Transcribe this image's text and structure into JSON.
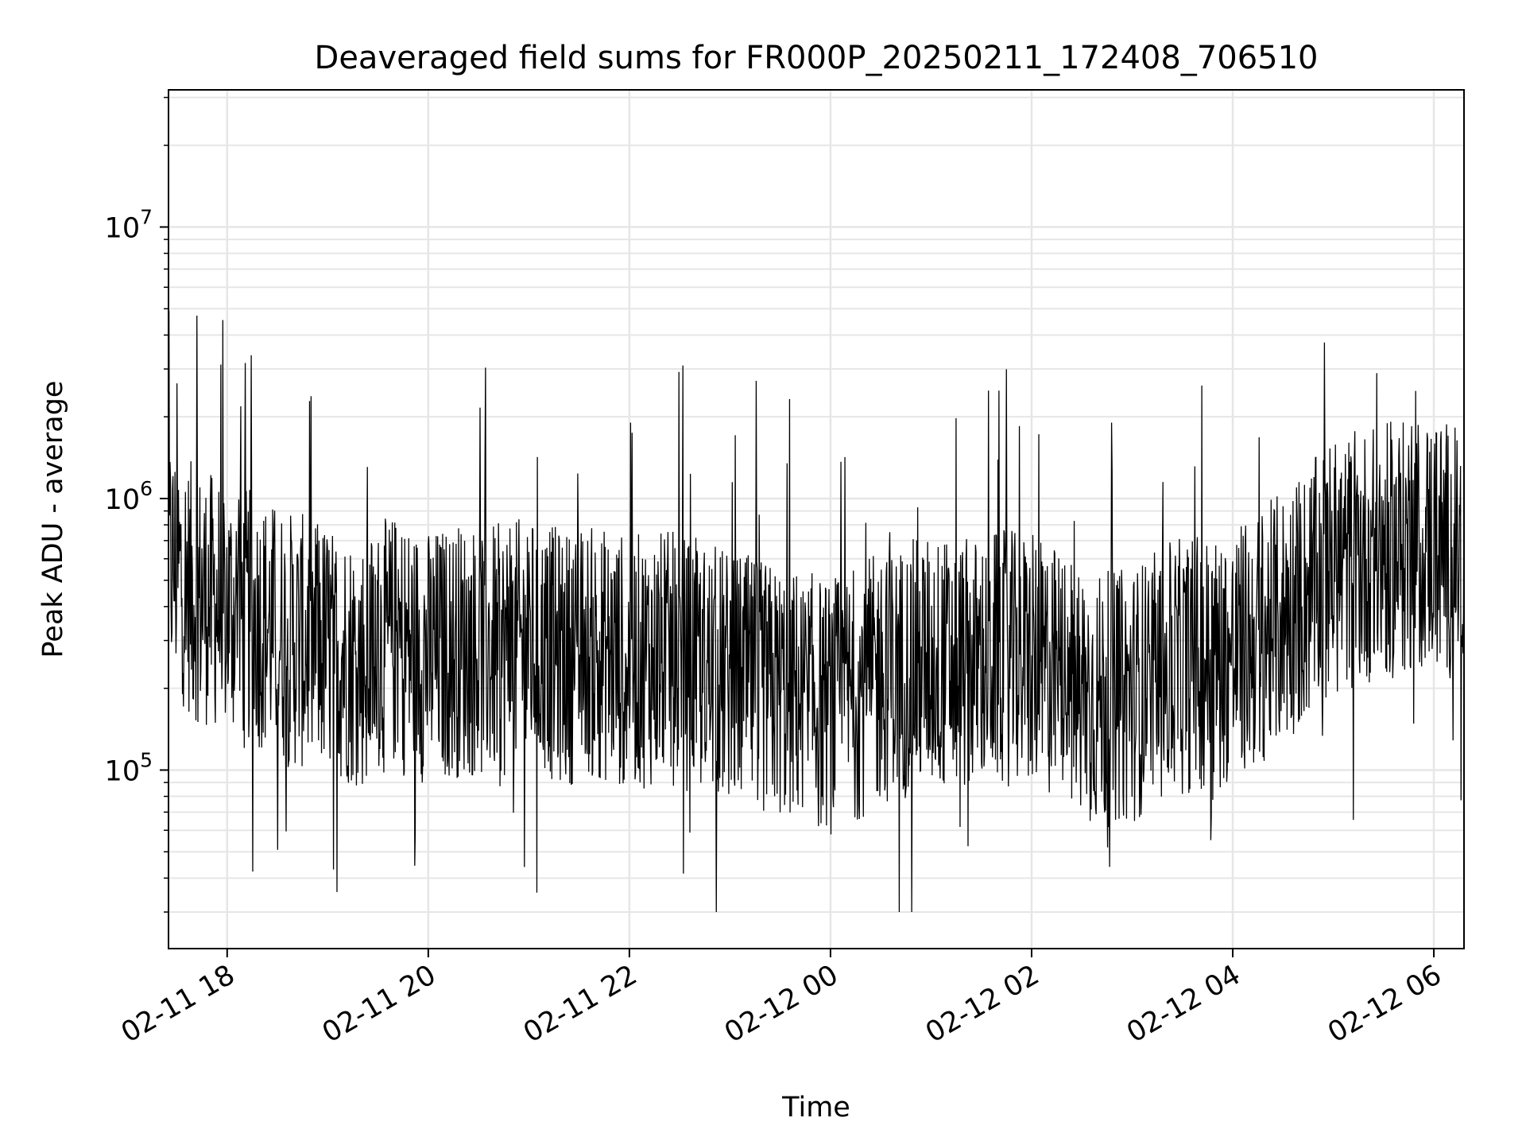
{
  "chart_data": {
    "type": "line",
    "title": "Deaveraged field sums for FR000P_20250211_172408_706510",
    "xlabel": "Time",
    "ylabel": "Peak ADU - average",
    "yscale": "log",
    "ylim": [
      22000,
      32000000
    ],
    "xlim": [
      "2025-02-11 17:25",
      "2025-02-12 06:18"
    ],
    "grid": true,
    "line_color": "#000000",
    "grid_color": "#e6e6e6",
    "x_ticks": [
      {
        "value": "2025-02-11 18:00",
        "label": "02-11 18"
      },
      {
        "value": "2025-02-11 20:00",
        "label": "02-11 20"
      },
      {
        "value": "2025-02-11 22:00",
        "label": "02-11 22"
      },
      {
        "value": "2025-02-12 00:00",
        "label": "02-12 00"
      },
      {
        "value": "2025-02-12 02:00",
        "label": "02-12 02"
      },
      {
        "value": "2025-02-12 04:00",
        "label": "02-12 04"
      },
      {
        "value": "2025-02-12 06:00",
        "label": "02-12 06"
      }
    ],
    "y_ticks": [
      {
        "value": 100000,
        "base": "10",
        "exp": "5"
      },
      {
        "value": 1000000,
        "base": "10",
        "exp": "6"
      },
      {
        "value": 10000000,
        "base": "10",
        "exp": "7"
      }
    ],
    "series": [
      {
        "x": [
          "2025-02-11 17:25",
          "2025-02-11 17:40",
          "2025-02-11 18:00",
          "2025-02-11 18:20",
          "2025-02-11 18:40",
          "2025-02-11 19:00",
          "2025-02-11 19:20",
          "2025-02-11 19:40",
          "2025-02-11 20:00",
          "2025-02-11 20:20",
          "2025-02-11 20:40",
          "2025-02-11 21:00",
          "2025-02-11 21:20",
          "2025-02-11 21:40",
          "2025-02-11 22:00",
          "2025-02-11 22:20",
          "2025-02-11 22:40",
          "2025-02-11 23:00",
          "2025-02-11 23:20",
          "2025-02-11 23:40",
          "2025-02-12 00:00",
          "2025-02-12 00:20",
          "2025-02-12 00:40",
          "2025-02-12 01:00",
          "2025-02-12 01:20",
          "2025-02-12 01:40",
          "2025-02-12 02:00",
          "2025-02-12 02:20",
          "2025-02-12 02:40",
          "2025-02-12 03:00",
          "2025-02-12 03:20",
          "2025-02-12 03:40",
          "2025-02-12 04:00",
          "2025-02-12 04:20",
          "2025-02-12 04:40",
          "2025-02-12 05:00",
          "2025-02-12 05:20",
          "2025-02-12 05:40",
          "2025-02-12 06:00",
          "2025-02-12 06:18"
        ],
        "y": [
          600000,
          450000,
          400000,
          350000,
          300000,
          280000,
          250000,
          300000,
          260000,
          280000,
          270000,
          290000,
          260000,
          270000,
          250000,
          260000,
          240000,
          220000,
          200000,
          190000,
          170000,
          200000,
          230000,
          250000,
          240000,
          260000,
          250000,
          220000,
          180000,
          190000,
          230000,
          250000,
          260000,
          320000,
          420000,
          550000,
          620000,
          650000,
          700000,
          600000
        ]
      }
    ]
  }
}
